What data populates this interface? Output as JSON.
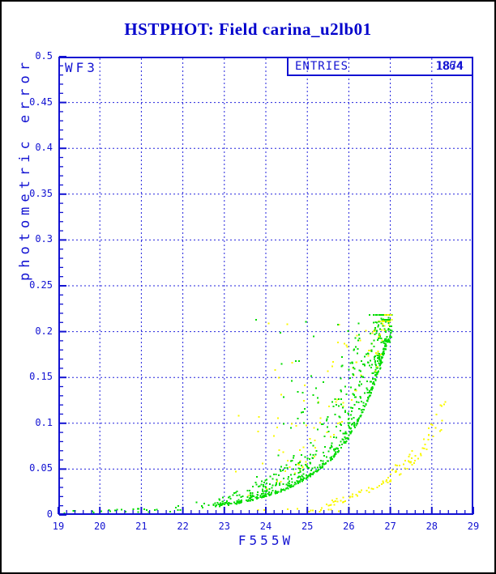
{
  "page": {
    "background": "#FFFFFF",
    "border_color": "#000000"
  },
  "header": {
    "title": "HSTPHOT: Field carina_u2lb01",
    "title_color": "#0000CC"
  },
  "plot": {
    "chip_label": "WF3",
    "entries": {
      "label": "ENTRIES",
      "values": [
        "1874",
        "1864"
      ]
    },
    "colors": {
      "axis_blue": "#1212D2",
      "grid_blue": "#2323DD",
      "green_points": "#00DC00",
      "yellow_points": "#FAF800"
    },
    "x_axis": {
      "label": "F555W",
      "min": 19,
      "max": 29,
      "major_tick": 1,
      "minor_tick": 0.2,
      "tick_labels": [
        "19",
        "20",
        "21",
        "22",
        "23",
        "24",
        "25",
        "26",
        "27",
        "28",
        "29"
      ]
    },
    "y_axis": {
      "label": "photometric error",
      "min": 0,
      "max": 0.5,
      "major_tick": 0.05,
      "minor_tick": 0.01,
      "tick_labels": [
        "0",
        "0.05",
        "0.1",
        "0.15",
        "0.2",
        "0.25",
        "0.3",
        "0.35",
        "0.4",
        "0.45",
        "0.5"
      ]
    }
  },
  "chart_data": {
    "type": "scatter",
    "title": "HSTPHOT: Field carina_u2lb01",
    "xlabel": "F555W",
    "ylabel": "photometric error",
    "xlim": [
      19,
      29
    ],
    "ylim": [
      0,
      0.5
    ],
    "grid": "dashed blue lines at every x integer 20-28 and every y 0.05 step 0.05-0.45",
    "legend_position": "none",
    "annotations": [
      "WF3 (chip label, top-left)",
      "ENTRIES 1874 and 1864 overprinted (top-right box)"
    ],
    "marker": "2px filled square",
    "seed": 42,
    "curves": {
      "green_ridge": {
        "x": [
          19.0,
          19.5,
          20.0,
          20.5,
          21.0,
          21.5,
          22.0,
          22.4,
          22.8,
          23.2,
          23.6,
          24.0,
          24.4,
          24.8,
          25.2,
          25.6,
          25.9,
          26.2,
          26.5,
          26.75,
          26.95,
          27.1
        ],
        "y": [
          0.003,
          0.0033,
          0.0036,
          0.004,
          0.0045,
          0.0052,
          0.0065,
          0.0082,
          0.0103,
          0.013,
          0.0165,
          0.022,
          0.0285,
          0.037,
          0.049,
          0.065,
          0.082,
          0.105,
          0.136,
          0.17,
          0.2,
          0.218
        ]
      },
      "yellow_ridge": {
        "x": [
          25.3,
          25.7,
          26.1,
          26.5,
          26.9,
          27.3,
          27.7,
          28.0,
          28.35
        ],
        "y": [
          0.01,
          0.014,
          0.019,
          0.027,
          0.037,
          0.05,
          0.068,
          0.087,
          0.11
        ]
      },
      "flat_low": {
        "x": [
          19.0,
          29.0
        ],
        "y": [
          0.004,
          0.0045
        ]
      }
    },
    "series": [
      {
        "name": "well-detected stars (green): error vs magnitude ridge, cutoff at mag 27.05 / err 0.215",
        "color": "#00DC00",
        "clusters": [
          {
            "layer": 2,
            "n": 26,
            "xmin": 19.15,
            "xmax": 21.95,
            "xpow": 1.0,
            "curve": "green_ridge",
            "fmin": 0.7,
            "fmax": 1.5,
            "fpow": 1.0,
            "yadd": 0.0006
          },
          {
            "layer": 2,
            "n": 620,
            "xmin": 22.0,
            "xmax": 27.05,
            "xpow": 0.55,
            "curve": "green_ridge",
            "fmin": 0.95,
            "fmax": 1.85,
            "fpow": 3.8,
            "yadd": 0.0012,
            "ycap": 0.218
          },
          {
            "layer": 2,
            "n": 115,
            "xmin": 23.6,
            "xmax": 27.0,
            "xpow": 0.65,
            "curve": "green_ridge",
            "band": true,
            "fmin": 1.25,
            "fpow": 2.4,
            "ycap": 0.213
          },
          {
            "layer": 2,
            "n": 85,
            "xmin": 26.55,
            "xmax": 27.05,
            "xpow": 0.75,
            "curve": "green_ridge",
            "fmin": 0.93,
            "fmax": 1.3,
            "fpow": 2.2,
            "yadd": 0.0015,
            "ycap": 0.218
          }
        ]
      },
      {
        "name": "flagged / second-chip detections (yellow): scattered outliers plus faint second sequence reaching (28.35, 0.11)",
        "color": "#FAF800",
        "clusters": [
          {
            "layer": 1,
            "n": 95,
            "xmin": 23.2,
            "xmax": 27.0,
            "xpow": 0.7,
            "curve": "green_ridge",
            "band": true,
            "fmin": 1.3,
            "fpow": 2.5,
            "ycap": 0.211
          },
          {
            "layer": 1,
            "n": 92,
            "xmin": 25.3,
            "xmax": 28.35,
            "xpow": 0.85,
            "curve": "yellow_ridge",
            "fmin": 0.9,
            "fmax": 1.22,
            "fpow": 1.6,
            "yadd": 0.0012
          },
          {
            "layer": 1,
            "n": 15,
            "xmin": 23.8,
            "xmax": 26.4,
            "xpow": 1.0,
            "curve": "flat_low",
            "fmin": 0.7,
            "fmax": 1.7,
            "fpow": 1.0,
            "yadd": 0.0008
          },
          {
            "layer": 3,
            "n": 22,
            "xmin": 26.6,
            "xmax": 27.05,
            "xpow": 0.8,
            "curve": "green_ridge",
            "fmin": 1.0,
            "fmax": 1.22,
            "fpow": 1.5,
            "yadd": 0.001,
            "ycap": 0.218
          }
        ]
      }
    ]
  }
}
